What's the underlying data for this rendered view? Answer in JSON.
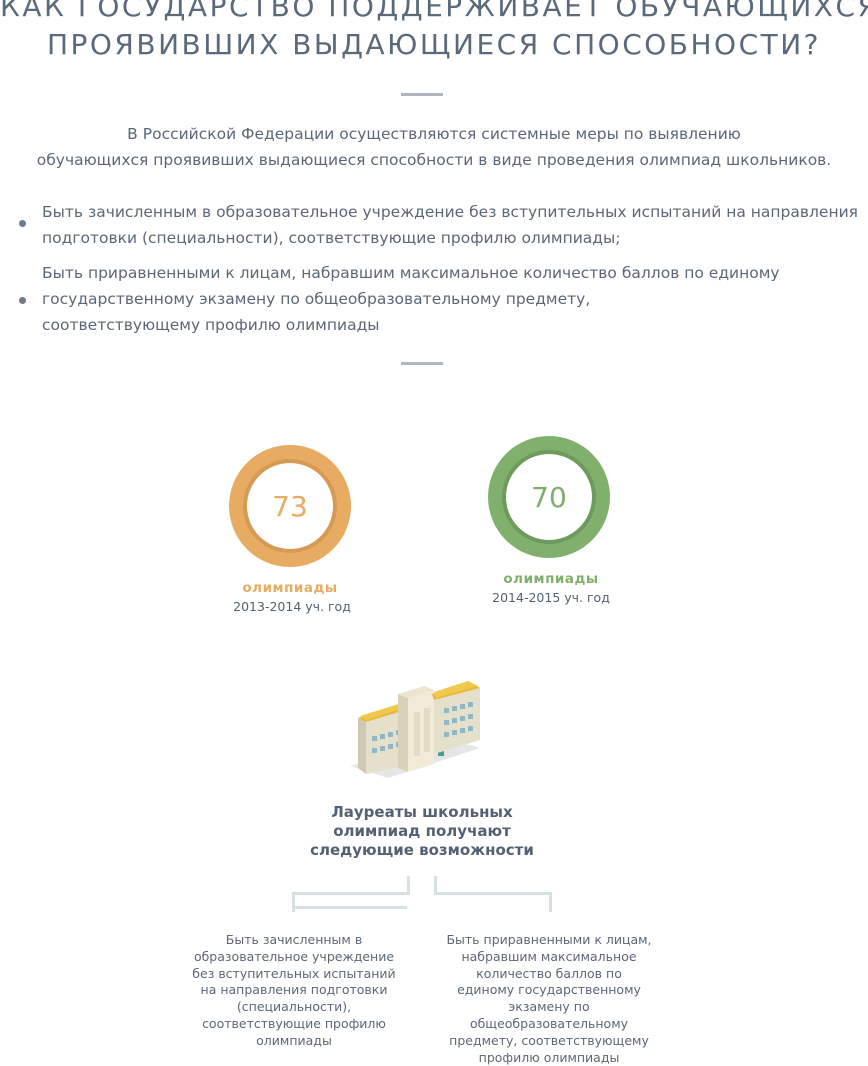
{
  "header": {
    "title_line1": "КАК ГОСУДАРСТВО ПОДДЕРЖИВАЕТ ОБУЧАЮЩИХСЯ,",
    "title_line2": "ПРОЯВИВШИХ ВЫДАЮЩИЕСЯ СПОСОБНОСТИ?"
  },
  "intro": {
    "line1": "В Российской Федерации осуществляются системные меры по выявлению",
    "line2": "обучающихся проявивших выдающиеся способности в виде проведения олимпиад школьников."
  },
  "bullets": [
    {
      "line1": "Быть зачисленным в образовательное учреждение без вступительных испытаний на направления",
      "line2": "подготовки (специальности), соответствующие профилю олимпиады;"
    },
    {
      "line1": "Быть приравненными к лицам, набравшим максимальное количество баллов по единому",
      "line2": "государственному экзамену по общеобразовательному предмету,",
      "line3": "соответствующему профилю олимпиады"
    }
  ],
  "stats": [
    {
      "value": "73",
      "label": "олимпиады",
      "year": "2013-2014 уч. год",
      "color": "#e8ab62",
      "dark": "#d69a54"
    },
    {
      "value": "70",
      "label": "олимпиады",
      "year": "2014-2015 уч. год",
      "color": "#80b06c",
      "dark": "#6e9a5d"
    }
  ],
  "illustration": {
    "icon": "school-building-icon"
  },
  "caption": {
    "line1": "Лауреаты школьных",
    "line2": "олимпиад получают",
    "line3": "следующие возможности"
  },
  "options": [
    {
      "lines": [
        "Быть зачисленным в",
        "образовательное учреждение",
        "без вступительных испытаний",
        "на направления подготовки",
        "(специальности),",
        "соответствующие профилю",
        "олимпиады"
      ]
    },
    {
      "lines": [
        "Быть приравненными к лицам,",
        "набравшим максимальное",
        "количество баллов по",
        "единому государственному",
        "экзамену по",
        "общеобразовательному",
        "предмету, соответствующему",
        "профилю олимпиады"
      ]
    }
  ],
  "colors": {
    "text": "#536172",
    "rule": "#aeb6bf",
    "bracket": "#d7e1e4"
  }
}
